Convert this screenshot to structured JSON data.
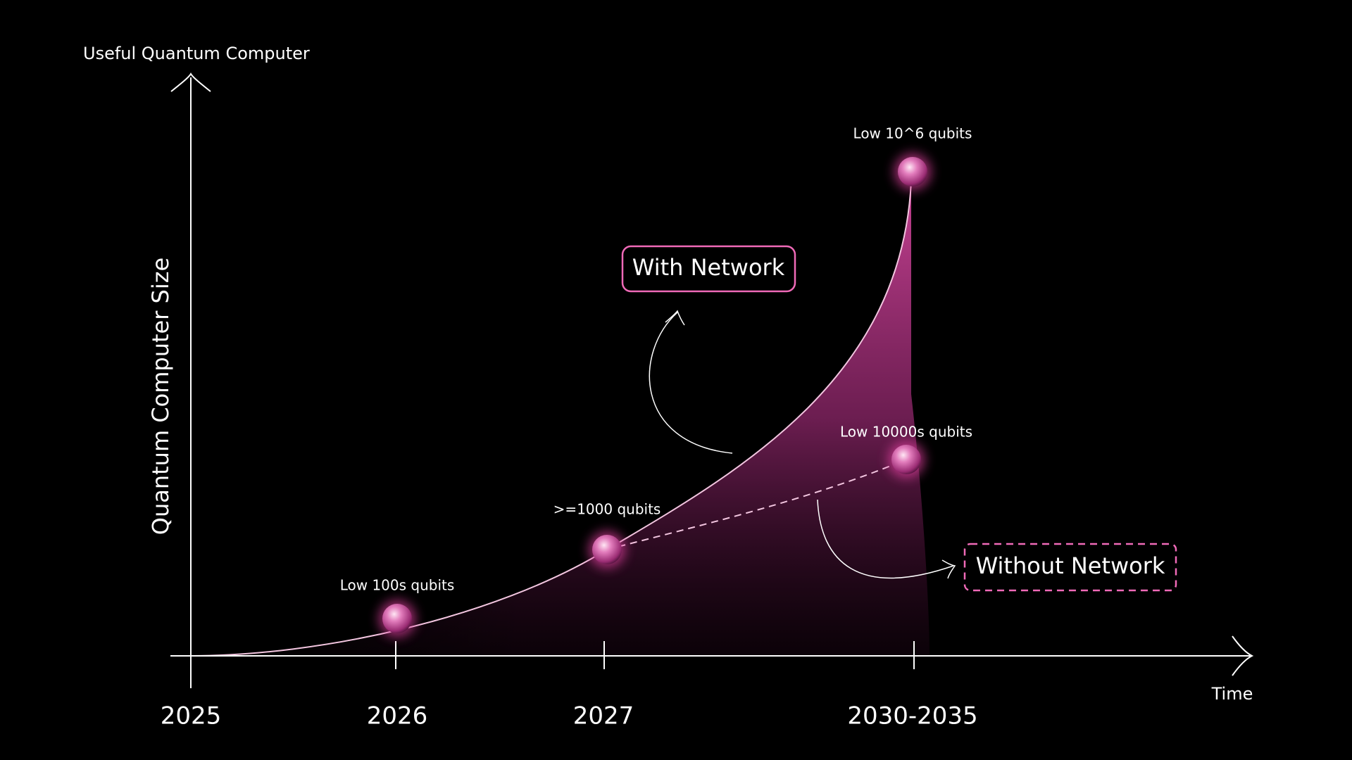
{
  "axes": {
    "y_top_label": "Useful Quantum Computer",
    "y_label": "Quantum Computer Size",
    "x_label": "Time"
  },
  "years": [
    "2025",
    "2026",
    "2027",
    "2030-2035"
  ],
  "milestones": [
    {
      "label": "Low 100s qubits"
    },
    {
      "label": ">=1000 qubits"
    },
    {
      "label": "Low 10^6 qubits"
    },
    {
      "label": "Low 10000s qubits"
    }
  ],
  "callouts": {
    "with_network": "With Network",
    "without_network": "Without Network"
  }
}
